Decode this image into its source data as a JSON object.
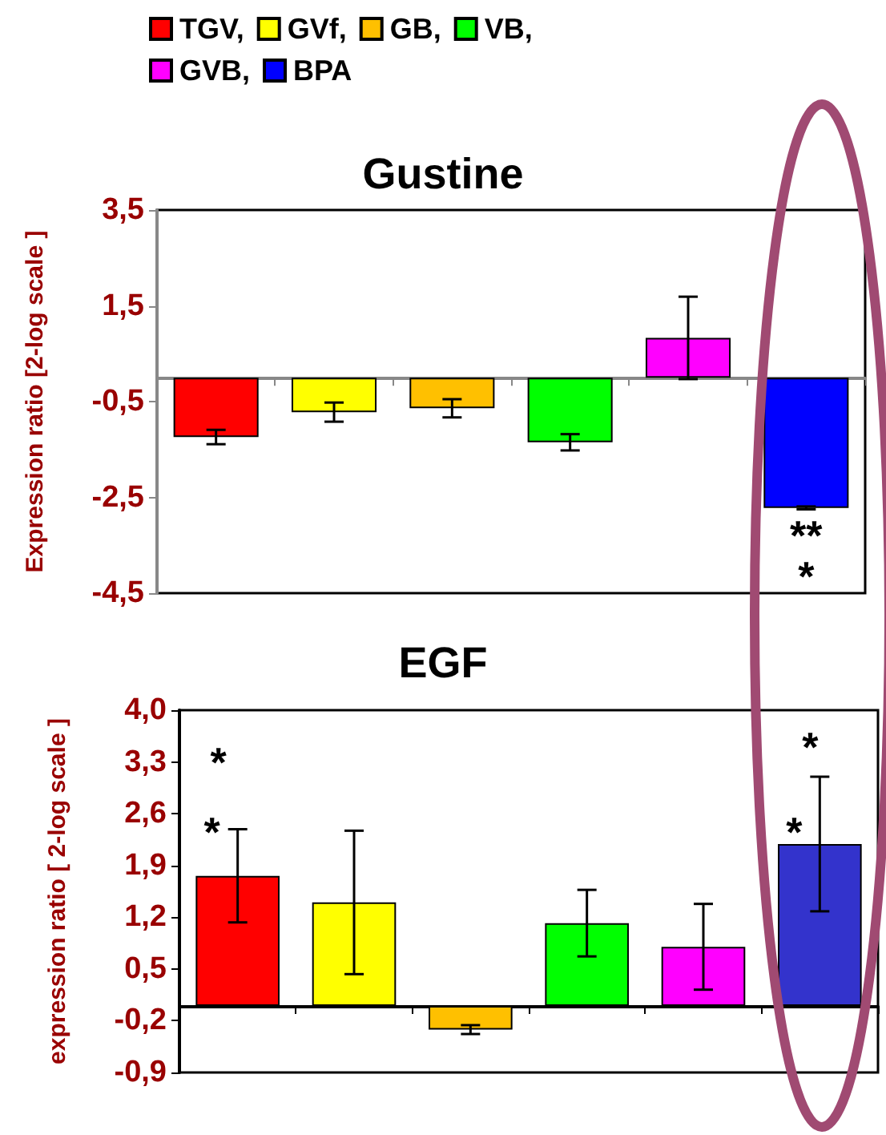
{
  "chart_data": [
    {
      "type": "bar",
      "title": "Gustine",
      "ylabel": "Expression ratio [2-log scale ]",
      "categories": [
        null,
        null,
        null,
        null,
        null,
        null
      ],
      "series": [
        {
          "name": "TGV,",
          "color": "#ff0000",
          "values": [
            -1.24,
            null,
            null,
            null,
            null,
            null
          ],
          "errors": [
            0.15,
            null,
            null,
            null,
            null,
            null
          ]
        },
        {
          "name": "GVf,",
          "color": "#ffff00",
          "values": [
            null,
            -0.72,
            null,
            null,
            null,
            null
          ],
          "errors": [
            null,
            0.2,
            null,
            null,
            null,
            null
          ]
        },
        {
          "name": "GB,",
          "color": "#ffc000",
          "values": [
            null,
            null,
            -0.64,
            null,
            null,
            null
          ],
          "errors": [
            null,
            null,
            0.19,
            null,
            null,
            null
          ]
        },
        {
          "name": "VB,",
          "color": "#00ff00",
          "values": [
            null,
            null,
            null,
            -1.35,
            null,
            null
          ],
          "errors": [
            null,
            null,
            null,
            0.17,
            null,
            null
          ]
        },
        {
          "name": "GVB,",
          "color": "#ff00ff",
          "values": [
            null,
            null,
            null,
            null,
            0.83,
            null
          ],
          "errors": [
            null,
            null,
            null,
            null,
            0.86,
            null
          ]
        },
        {
          "name": "BPA",
          "color": "#0000ff",
          "values": [
            null,
            null,
            null,
            null,
            null,
            -2.72
          ],
          "errors": [
            null,
            null,
            null,
            null,
            null,
            0.03
          ]
        }
      ],
      "ylim": [
        -4.5,
        3.5
      ],
      "yticks": [
        {
          "value": 3.5,
          "label": "3,5"
        },
        {
          "value": 1.5,
          "label": "1,5"
        },
        {
          "value": -0.5,
          "label": "-0,5"
        },
        {
          "value": -2.5,
          "label": "-2,5"
        },
        {
          "value": -4.5,
          "label": "-4,5"
        }
      ],
      "legend": "top",
      "annotations": [
        "**",
        "*"
      ]
    },
    {
      "type": "bar",
      "title": "EGF",
      "ylabel": "expression ratio [ 2-log scale ]",
      "categories": [
        null,
        null,
        null,
        null,
        null,
        null
      ],
      "series": [
        {
          "color": "#ff0000",
          "values": [
            1.76,
            null,
            null,
            null,
            null,
            null
          ],
          "errors": [
            0.63,
            null,
            null,
            null,
            null,
            null
          ]
        },
        {
          "color": "#ffff00",
          "values": [
            null,
            1.4,
            null,
            null,
            null,
            null
          ],
          "errors": [
            null,
            0.97,
            null,
            null,
            null,
            null
          ]
        },
        {
          "color": "#ffc000",
          "values": [
            null,
            null,
            -0.32,
            null,
            null,
            null
          ],
          "errors": [
            null,
            null,
            0.06,
            null,
            null,
            null
          ]
        },
        {
          "color": "#00ff00",
          "values": [
            null,
            null,
            null,
            1.12,
            null,
            null
          ],
          "errors": [
            null,
            null,
            null,
            0.45,
            null,
            null
          ]
        },
        {
          "color": "#ff00ff",
          "values": [
            null,
            null,
            null,
            null,
            0.8,
            null
          ],
          "errors": [
            null,
            null,
            null,
            null,
            0.58,
            null
          ]
        },
        {
          "color": "#3333cc",
          "values": [
            null,
            null,
            null,
            null,
            null,
            2.19
          ],
          "errors": [
            null,
            null,
            null,
            null,
            null,
            0.91
          ]
        }
      ],
      "ylim": [
        -0.9,
        4.0
      ],
      "yticks": [
        {
          "value": 4.0,
          "label": "4,0"
        },
        {
          "value": 3.3,
          "label": "3,3"
        },
        {
          "value": 2.6,
          "label": "2,6"
        },
        {
          "value": 1.9,
          "label": "1,9"
        },
        {
          "value": 1.2,
          "label": "1,2"
        },
        {
          "value": 0.5,
          "label": "0,5"
        },
        {
          "value": -0.2,
          "label": "-0,2"
        },
        {
          "value": -0.9,
          "label": "-0,9"
        }
      ],
      "annotations": [
        "*",
        "*",
        "*",
        "*"
      ]
    }
  ]
}
